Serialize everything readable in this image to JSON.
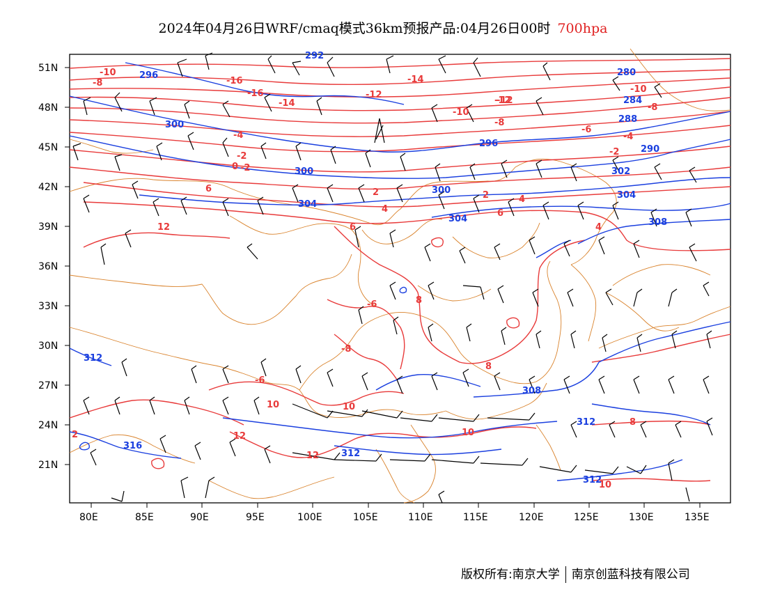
{
  "title": {
    "main": "2024年04月26日WRF/cmaq模式36km预报产品:04月26日00时",
    "level": "700hpa"
  },
  "axes": {
    "lat_labels": [
      "51N",
      "48N",
      "45N",
      "42N",
      "39N",
      "36N",
      "33N",
      "30N",
      "27N",
      "24N",
      "21N"
    ],
    "lon_labels": [
      "80E",
      "85E",
      "90E",
      "95E",
      "100E",
      "105E",
      "110E",
      "115E",
      "120E",
      "125E",
      "130E",
      "135E"
    ]
  },
  "contours": {
    "temperature_labels": [
      "-10",
      "-8",
      "-16",
      "-16",
      "-14",
      "-12",
      "-14",
      "-12",
      "-10",
      "-10",
      "-8",
      "-8",
      "-6",
      "-4",
      "-4",
      "-2",
      "-2",
      "-2",
      "0",
      "2",
      "2",
      "4",
      "4",
      "4",
      "6",
      "6",
      "6",
      "8",
      "8",
      "8",
      "10",
      "10",
      "10",
      "10",
      "12",
      "12",
      "12",
      "2",
      "-8",
      "-6",
      "-6",
      "-12"
    ],
    "height_labels": [
      "292",
      "296",
      "280",
      "284",
      "288",
      "300",
      "296",
      "290",
      "300",
      "300",
      "302",
      "304",
      "304",
      "304",
      "308",
      "312",
      "308",
      "312",
      "312",
      "316",
      "312"
    ]
  },
  "colors": {
    "temperature": "#e83a3a",
    "height": "#1a3fdf",
    "border": "#d9822b",
    "wind_barb": "#000000",
    "title_level": "#e02020"
  },
  "footer": {
    "copyright": "版权所有:南京大学",
    "company": "南京创蓝科技有限公司"
  }
}
